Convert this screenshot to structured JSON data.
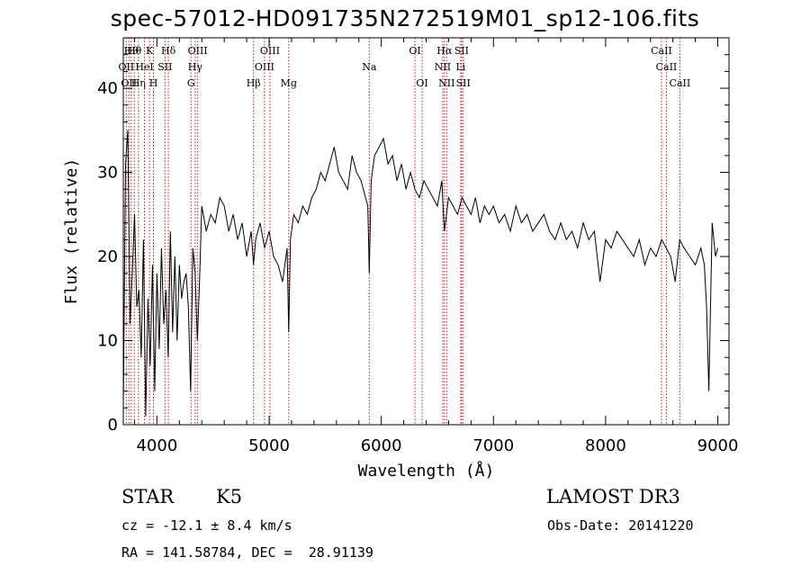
{
  "chart_data": {
    "type": "line",
    "title": "spec-57012-HD091735N272519M01_sp12-106.fits",
    "xlabel": "Wavelength (Å)",
    "ylabel": "Flux (relative)",
    "xlim": [
      3700,
      9100
    ],
    "ylim": [
      0,
      46
    ],
    "xticks": [
      4000,
      5000,
      6000,
      7000,
      8000,
      9000
    ],
    "yticks": [
      0,
      10,
      20,
      30,
      40
    ],
    "series": [
      {
        "name": "spectrum",
        "x": [
          3700,
          3720,
          3740,
          3760,
          3780,
          3800,
          3820,
          3840,
          3860,
          3880,
          3900,
          3920,
          3940,
          3960,
          3980,
          4000,
          4020,
          4040,
          4060,
          4080,
          4100,
          4120,
          4140,
          4160,
          4180,
          4200,
          4220,
          4240,
          4260,
          4280,
          4300,
          4320,
          4340,
          4360,
          4380,
          4400,
          4440,
          4480,
          4520,
          4560,
          4600,
          4640,
          4680,
          4720,
          4760,
          4800,
          4840,
          4861,
          4880,
          4920,
          4960,
          5000,
          5040,
          5080,
          5120,
          5160,
          5175,
          5190,
          5220,
          5260,
          5300,
          5340,
          5380,
          5420,
          5460,
          5500,
          5540,
          5580,
          5620,
          5660,
          5700,
          5740,
          5780,
          5820,
          5860,
          5880,
          5893,
          5910,
          5940,
          5980,
          6020,
          6060,
          6100,
          6140,
          6180,
          6220,
          6260,
          6300,
          6340,
          6380,
          6420,
          6460,
          6500,
          6540,
          6563,
          6600,
          6640,
          6680,
          6720,
          6760,
          6800,
          6840,
          6880,
          6920,
          6960,
          7000,
          7050,
          7100,
          7150,
          7200,
          7250,
          7300,
          7350,
          7400,
          7450,
          7500,
          7550,
          7600,
          7650,
          7700,
          7750,
          7800,
          7850,
          7900,
          7950,
          8000,
          8050,
          8100,
          8150,
          8200,
          8250,
          8300,
          8350,
          8400,
          8450,
          8500,
          8540,
          8580,
          8620,
          8660,
          8700,
          8750,
          8800,
          8850,
          8880,
          8900,
          8920,
          8950,
          8980,
          9000
        ],
        "y": [
          2,
          31,
          35,
          12,
          18,
          25,
          14,
          16,
          8,
          22,
          1,
          15,
          7,
          19,
          4,
          18,
          9,
          21,
          12,
          16,
          8,
          23,
          11,
          20,
          10,
          19,
          15,
          17,
          18,
          14,
          4,
          21,
          18,
          10,
          17,
          26,
          23,
          25,
          24,
          27,
          26,
          23,
          25,
          22,
          24,
          20,
          23,
          19,
          22,
          24,
          21,
          23,
          20,
          19,
          17,
          21,
          11,
          22,
          25,
          24,
          26,
          25,
          27,
          28,
          30,
          29,
          31,
          33,
          30,
          29,
          28,
          32,
          30,
          29,
          27,
          26,
          18,
          29,
          32,
          33,
          34,
          31,
          32,
          29,
          31,
          28,
          30,
          28,
          27,
          29,
          28,
          27,
          26,
          29,
          23,
          27,
          26,
          25,
          27,
          26,
          25,
          27,
          24,
          26,
          25,
          26,
          24,
          25,
          23,
          26,
          24,
          25,
          23,
          24,
          25,
          23,
          22,
          24,
          22,
          23,
          21,
          24,
          22,
          23,
          17,
          22,
          21,
          23,
          22,
          21,
          20,
          22,
          19,
          21,
          20,
          22,
          21,
          20,
          17,
          22,
          21,
          20,
          19,
          21,
          19,
          14,
          4,
          24,
          20,
          21
        ]
      }
    ],
    "lines": [
      {
        "wave": 3727,
        "label": "OII",
        "row": 1
      },
      {
        "wave": 3750,
        "label": "OII",
        "row": 2
      },
      {
        "wave": 3770,
        "label": "Hθ",
        "row": 0
      },
      {
        "wave": 3798,
        "label": "Hθ",
        "row": 0
      },
      {
        "wave": 3835,
        "label": "Hη",
        "row": 2
      },
      {
        "wave": 3889,
        "label": "HeI",
        "row": 1
      },
      {
        "wave": 3934,
        "label": "K",
        "row": 0
      },
      {
        "wave": 3969,
        "label": "H",
        "row": 2
      },
      {
        "wave": 4072,
        "label": "SII",
        "row": 1
      },
      {
        "wave": 4102,
        "label": "Hδ",
        "row": 0
      },
      {
        "wave": 4304,
        "label": "G",
        "row": 2
      },
      {
        "wave": 4341,
        "label": "Hγ",
        "row": 1
      },
      {
        "wave": 4363,
        "label": "OIII",
        "row": 0
      },
      {
        "wave": 4861,
        "label": "Hβ",
        "row": 2
      },
      {
        "wave": 4959,
        "label": "OIII",
        "row": 1
      },
      {
        "wave": 5007,
        "label": "OIII",
        "row": 0
      },
      {
        "wave": 5175,
        "label": "Mg",
        "row": 2
      },
      {
        "wave": 5893,
        "label": "Na",
        "row": 1
      },
      {
        "wave": 6300,
        "label": "OI",
        "row": 0
      },
      {
        "wave": 6364,
        "label": "OI",
        "row": 2
      },
      {
        "wave": 6548,
        "label": "NII",
        "row": 1
      },
      {
        "wave": 6563,
        "label": "Hα",
        "row": 0
      },
      {
        "wave": 6583,
        "label": "NII",
        "row": 2
      },
      {
        "wave": 6708,
        "label": "Li",
        "row": 1
      },
      {
        "wave": 6716,
        "label": "SII",
        "row": 0
      },
      {
        "wave": 6731,
        "label": "SII",
        "row": 2
      },
      {
        "wave": 8498,
        "label": "CaII",
        "row": 0
      },
      {
        "wave": 8542,
        "label": "CaII",
        "row": 1
      },
      {
        "wave": 8662,
        "label": "CaII",
        "row": 2
      }
    ]
  },
  "info": {
    "object_class": "STAR",
    "subclass": "K5",
    "survey": "LAMOST DR3",
    "redshift": "cz = -12.1 ± 8.4 km/s",
    "obs_date": "Obs-Date: 20141220",
    "coords": "RA = 141.58784, DEC =  28.91139"
  }
}
